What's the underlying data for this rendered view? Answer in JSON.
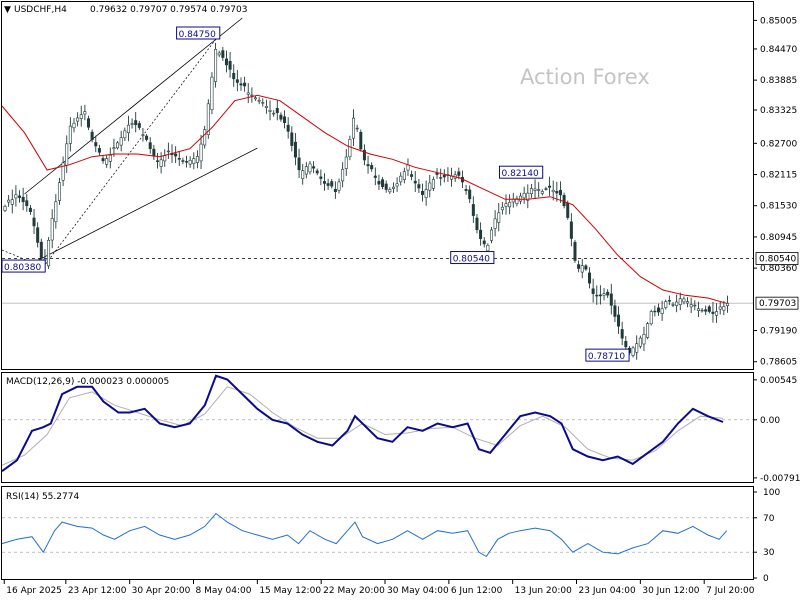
{
  "header": {
    "symbol_tf": "USDCHF,H4",
    "ohlc": "0.79632 0.79707 0.79574 0.79703"
  },
  "watermark": "Action Forex",
  "colors": {
    "candle": "#1f3a3a",
    "sma": "#d10000",
    "macd_line": "#0b0b8c",
    "macd_signal": "#b0b0b0",
    "rsi_line": "#1e6fd9",
    "label_text": "#0b0b8c"
  },
  "chart_data": [
    {
      "type": "candlestick",
      "panel": "price",
      "ylim": [
        0.786,
        0.8505
      ],
      "y_ticks": [
        "0.85005",
        "0.84470",
        "0.83885",
        "0.83325",
        "0.82700",
        "0.82115",
        "0.81530",
        "0.80945",
        "0.80360",
        "0.79190",
        "0.78605"
      ],
      "y_tick_values": [
        0.85005,
        0.8447,
        0.83885,
        0.83325,
        0.827,
        0.82115,
        0.8153,
        0.80945,
        0.8036,
        0.7919,
        0.78605
      ],
      "current_price": "0.79703",
      "level_line": "0.80540",
      "annotations": [
        {
          "text": "0.84750",
          "x": "8 May 04:00",
          "y": 0.8475
        },
        {
          "text": "0.80380",
          "x": "16 Apr 2025",
          "y": 0.8038
        },
        {
          "text": "0.82140",
          "x": "13 Jun 20:00",
          "y": 0.8214
        },
        {
          "text": "0.80540",
          "x": "13 Jun 20:00",
          "y": 0.8054
        },
        {
          "text": "0.78710",
          "x": "30 Jun 12:00",
          "y": 0.7871
        }
      ],
      "channel": [
        {
          "start": [
            0.03,
            0.8175
          ],
          "end": [
            0.32,
            0.8505
          ]
        },
        {
          "start": [
            0.03,
            0.8038
          ],
          "end": [
            0.34,
            0.8261
          ]
        }
      ],
      "close_path": [
        [
          0.0,
          0.815
        ],
        [
          0.02,
          0.8175
        ],
        [
          0.04,
          0.814
        ],
        [
          0.055,
          0.804
        ],
        [
          0.065,
          0.812
        ],
        [
          0.08,
          0.822
        ],
        [
          0.09,
          0.83
        ],
        [
          0.11,
          0.833
        ],
        [
          0.12,
          0.8285
        ],
        [
          0.135,
          0.8245
        ],
        [
          0.15,
          0.826
        ],
        [
          0.17,
          0.831
        ],
        [
          0.19,
          0.829
        ],
        [
          0.205,
          0.824
        ],
        [
          0.22,
          0.8255
        ],
        [
          0.245,
          0.8235
        ],
        [
          0.26,
          0.825
        ],
        [
          0.27,
          0.83
        ],
        [
          0.285,
          0.846
        ],
        [
          0.295,
          0.843
        ],
        [
          0.31,
          0.839
        ],
        [
          0.33,
          0.837
        ],
        [
          0.35,
          0.835
        ],
        [
          0.365,
          0.833
        ],
        [
          0.38,
          0.83
        ],
        [
          0.395,
          0.822
        ],
        [
          0.41,
          0.824
        ],
        [
          0.43,
          0.82
        ],
        [
          0.445,
          0.818
        ],
        [
          0.46,
          0.825
        ],
        [
          0.47,
          0.833
        ],
        [
          0.48,
          0.825
        ],
        [
          0.495,
          0.822
        ],
        [
          0.51,
          0.818
        ],
        [
          0.525,
          0.819
        ],
        [
          0.54,
          0.823
        ],
        [
          0.56,
          0.818
        ],
        [
          0.575,
          0.821
        ],
        [
          0.59,
          0.8205
        ],
        [
          0.605,
          0.8215
        ],
        [
          0.62,
          0.8185
        ],
        [
          0.635,
          0.81
        ],
        [
          0.645,
          0.808
        ],
        [
          0.66,
          0.814
        ],
        [
          0.675,
          0.816
        ],
        [
          0.69,
          0.8175
        ],
        [
          0.705,
          0.819
        ],
        [
          0.72,
          0.8185
        ],
        [
          0.735,
          0.8185
        ],
        [
          0.745,
          0.817
        ],
        [
          0.755,
          0.812
        ],
        [
          0.765,
          0.804
        ],
        [
          0.775,
          0.805
        ],
        [
          0.785,
          0.8
        ],
        [
          0.795,
          0.7985
        ],
        [
          0.805,
          0.799
        ],
        [
          0.815,
          0.795
        ],
        [
          0.825,
          0.791
        ],
        [
          0.835,
          0.788
        ],
        [
          0.845,
          0.79
        ],
        [
          0.855,
          0.792
        ],
        [
          0.865,
          0.796
        ],
        [
          0.875,
          0.795
        ],
        [
          0.885,
          0.7975
        ],
        [
          0.895,
          0.797
        ],
        [
          0.905,
          0.7985
        ],
        [
          0.915,
          0.7978
        ],
        [
          0.925,
          0.797
        ],
        [
          0.935,
          0.796
        ],
        [
          0.945,
          0.7948
        ],
        [
          0.955,
          0.796
        ],
        [
          0.965,
          0.797
        ]
      ],
      "sma_path": [
        [
          0.0,
          0.834
        ],
        [
          0.03,
          0.829
        ],
        [
          0.06,
          0.822
        ],
        [
          0.09,
          0.823
        ],
        [
          0.12,
          0.8245
        ],
        [
          0.15,
          0.825
        ],
        [
          0.18,
          0.825
        ],
        [
          0.21,
          0.8245
        ],
        [
          0.25,
          0.826
        ],
        [
          0.28,
          0.83
        ],
        [
          0.31,
          0.835
        ],
        [
          0.34,
          0.836
        ],
        [
          0.37,
          0.835
        ],
        [
          0.4,
          0.832
        ],
        [
          0.43,
          0.829
        ],
        [
          0.46,
          0.8265
        ],
        [
          0.49,
          0.825
        ],
        [
          0.52,
          0.824
        ],
        [
          0.55,
          0.8225
        ],
        [
          0.58,
          0.8215
        ],
        [
          0.61,
          0.8205
        ],
        [
          0.64,
          0.8185
        ],
        [
          0.67,
          0.8165
        ],
        [
          0.7,
          0.8165
        ],
        [
          0.73,
          0.817
        ],
        [
          0.76,
          0.8155
        ],
        [
          0.79,
          0.811
        ],
        [
          0.82,
          0.806
        ],
        [
          0.85,
          0.802
        ],
        [
          0.88,
          0.7995
        ],
        [
          0.91,
          0.7985
        ],
        [
          0.94,
          0.798
        ],
        [
          0.965,
          0.797
        ]
      ]
    },
    {
      "type": "line",
      "panel": "macd",
      "title": "MACD(12,26,9) -0.000023 0.000005",
      "ylim": [
        -0.0082,
        0.0057
      ],
      "y_ticks": [
        "0.00545",
        "0.00",
        "-0.007911"
      ],
      "y_tick_values": [
        0.00545,
        0.0,
        -0.007911
      ],
      "series": [
        {
          "values": [
            [
              0.0,
              -0.007
            ],
            [
              0.02,
              -0.0055
            ],
            [
              0.04,
              -0.0015
            ],
            [
              0.055,
              -0.001
            ],
            [
              0.065,
              -0.0005
            ],
            [
              0.08,
              0.0035
            ],
            [
              0.1,
              0.0045
            ],
            [
              0.12,
              0.0045
            ],
            [
              0.135,
              0.0025
            ],
            [
              0.155,
              0.001
            ],
            [
              0.17,
              0.001
            ],
            [
              0.19,
              0.0015
            ],
            [
              0.21,
              -0.0005
            ],
            [
              0.23,
              -0.001
            ],
            [
              0.25,
              -0.0005
            ],
            [
              0.27,
              0.002
            ],
            [
              0.285,
              0.006
            ],
            [
              0.3,
              0.0055
            ],
            [
              0.32,
              0.0035
            ],
            [
              0.34,
              0.0015
            ],
            [
              0.36,
              0.0
            ],
            [
              0.38,
              -0.0005
            ],
            [
              0.4,
              -0.002
            ],
            [
              0.42,
              -0.003
            ],
            [
              0.44,
              -0.0035
            ],
            [
              0.46,
              -0.0015
            ],
            [
              0.47,
              0.0005
            ],
            [
              0.48,
              -0.0005
            ],
            [
              0.5,
              -0.0025
            ],
            [
              0.52,
              -0.003
            ],
            [
              0.54,
              -0.001
            ],
            [
              0.56,
              -0.0015
            ],
            [
              0.58,
              -0.0005
            ],
            [
              0.6,
              -0.001
            ],
            [
              0.62,
              -0.0005
            ],
            [
              0.635,
              -0.004
            ],
            [
              0.65,
              -0.0045
            ],
            [
              0.67,
              -0.002
            ],
            [
              0.69,
              0.0005
            ],
            [
              0.71,
              0.001
            ],
            [
              0.73,
              0.0005
            ],
            [
              0.745,
              -0.0005
            ],
            [
              0.76,
              -0.004
            ],
            [
              0.78,
              -0.005
            ],
            [
              0.8,
              -0.0055
            ],
            [
              0.82,
              -0.005
            ],
            [
              0.84,
              -0.006
            ],
            [
              0.86,
              -0.0045
            ],
            [
              0.88,
              -0.003
            ],
            [
              0.9,
              -0.0005
            ],
            [
              0.92,
              0.0015
            ],
            [
              0.94,
              0.0005
            ],
            [
              0.96,
              -0.0003
            ]
          ]
        },
        {
          "values": [
            [
              0.0,
              -0.0062
            ],
            [
              0.03,
              -0.0048
            ],
            [
              0.06,
              -0.002
            ],
            [
              0.09,
              0.003
            ],
            [
              0.12,
              0.0038
            ],
            [
              0.15,
              0.002
            ],
            [
              0.18,
              0.001
            ],
            [
              0.21,
              0.0
            ],
            [
              0.24,
              -0.0008
            ],
            [
              0.27,
              0.0008
            ],
            [
              0.3,
              0.0045
            ],
            [
              0.33,
              0.0035
            ],
            [
              0.36,
              0.001
            ],
            [
              0.39,
              -0.001
            ],
            [
              0.42,
              -0.0025
            ],
            [
              0.45,
              -0.0025
            ],
            [
              0.48,
              -0.0005
            ],
            [
              0.51,
              -0.002
            ],
            [
              0.54,
              -0.0018
            ],
            [
              0.57,
              -0.0012
            ],
            [
              0.6,
              -0.001
            ],
            [
              0.63,
              -0.0025
            ],
            [
              0.66,
              -0.0035
            ],
            [
              0.69,
              -0.0008
            ],
            [
              0.72,
              0.0005
            ],
            [
              0.75,
              -0.001
            ],
            [
              0.78,
              -0.004
            ],
            [
              0.81,
              -0.0052
            ],
            [
              0.84,
              -0.0055
            ],
            [
              0.87,
              -0.0042
            ],
            [
              0.9,
              -0.0015
            ],
            [
              0.93,
              0.0005
            ],
            [
              0.96,
              0.0002
            ]
          ]
        }
      ]
    },
    {
      "type": "line",
      "panel": "rsi",
      "title": "RSI(14) 55.2774",
      "ylim": [
        0,
        100
      ],
      "y_ticks": [
        "100",
        "70",
        "30",
        "0"
      ],
      "y_tick_values": [
        100,
        70,
        30,
        0
      ],
      "series": [
        {
          "values": [
            [
              0.0,
              40
            ],
            [
              0.02,
              45
            ],
            [
              0.04,
              48
            ],
            [
              0.055,
              30
            ],
            [
              0.07,
              55
            ],
            [
              0.08,
              65
            ],
            [
              0.1,
              60
            ],
            [
              0.12,
              58
            ],
            [
              0.135,
              50
            ],
            [
              0.15,
              45
            ],
            [
              0.17,
              55
            ],
            [
              0.19,
              60
            ],
            [
              0.21,
              50
            ],
            [
              0.23,
              45
            ],
            [
              0.25,
              50
            ],
            [
              0.27,
              60
            ],
            [
              0.285,
              75
            ],
            [
              0.3,
              65
            ],
            [
              0.32,
              55
            ],
            [
              0.34,
              50
            ],
            [
              0.36,
              45
            ],
            [
              0.38,
              50
            ],
            [
              0.395,
              40
            ],
            [
              0.41,
              55
            ],
            [
              0.43,
              45
            ],
            [
              0.445,
              40
            ],
            [
              0.46,
              55
            ],
            [
              0.47,
              65
            ],
            [
              0.48,
              48
            ],
            [
              0.5,
              40
            ],
            [
              0.52,
              45
            ],
            [
              0.54,
              55
            ],
            [
              0.56,
              45
            ],
            [
              0.58,
              55
            ],
            [
              0.6,
              52
            ],
            [
              0.62,
              55
            ],
            [
              0.635,
              30
            ],
            [
              0.645,
              25
            ],
            [
              0.66,
              45
            ],
            [
              0.675,
              52
            ],
            [
              0.69,
              55
            ],
            [
              0.71,
              58
            ],
            [
              0.73,
              55
            ],
            [
              0.745,
              45
            ],
            [
              0.76,
              30
            ],
            [
              0.78,
              40
            ],
            [
              0.8,
              30
            ],
            [
              0.82,
              28
            ],
            [
              0.84,
              35
            ],
            [
              0.86,
              40
            ],
            [
              0.88,
              55
            ],
            [
              0.9,
              52
            ],
            [
              0.92,
              60
            ],
            [
              0.94,
              50
            ],
            [
              0.955,
              45
            ],
            [
              0.965,
              55
            ]
          ]
        }
      ]
    }
  ],
  "x_axis": {
    "labels": [
      "16 Apr 2025",
      "23 Apr 12:00",
      "30 Apr 20:00",
      "8 May 04:00",
      "15 May 12:00",
      "22 May 20:00",
      "30 May 04:00",
      "6 Jun 12:00",
      "13 Jun 20:00",
      "23 Jun 04:00",
      "30 Jun 12:00",
      "7 Jul 20:00"
    ]
  }
}
